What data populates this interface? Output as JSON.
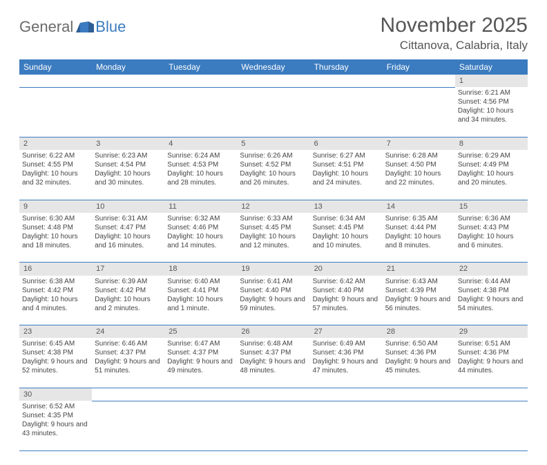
{
  "brand": {
    "part1": "General",
    "part2": "Blue"
  },
  "title": "November 2025",
  "location": "Cittanova, Calabria, Italy",
  "colors": {
    "header_bg": "#3b7bbf",
    "header_text": "#ffffff",
    "daynum_bg": "#e6e6e6",
    "row_border": "#3b7bbf",
    "page_bg": "#ffffff",
    "body_text": "#444444",
    "title_text": "#555555",
    "logo_gray": "#6a6a6a",
    "logo_blue": "#3b7bbf"
  },
  "weekdays": [
    "Sunday",
    "Monday",
    "Tuesday",
    "Wednesday",
    "Thursday",
    "Friday",
    "Saturday"
  ],
  "weeks": [
    [
      null,
      null,
      null,
      null,
      null,
      null,
      {
        "n": "1",
        "sunrise": "Sunrise: 6:21 AM",
        "sunset": "Sunset: 4:56 PM",
        "daylight": "Daylight: 10 hours and 34 minutes."
      }
    ],
    [
      {
        "n": "2",
        "sunrise": "Sunrise: 6:22 AM",
        "sunset": "Sunset: 4:55 PM",
        "daylight": "Daylight: 10 hours and 32 minutes."
      },
      {
        "n": "3",
        "sunrise": "Sunrise: 6:23 AM",
        "sunset": "Sunset: 4:54 PM",
        "daylight": "Daylight: 10 hours and 30 minutes."
      },
      {
        "n": "4",
        "sunrise": "Sunrise: 6:24 AM",
        "sunset": "Sunset: 4:53 PM",
        "daylight": "Daylight: 10 hours and 28 minutes."
      },
      {
        "n": "5",
        "sunrise": "Sunrise: 6:26 AM",
        "sunset": "Sunset: 4:52 PM",
        "daylight": "Daylight: 10 hours and 26 minutes."
      },
      {
        "n": "6",
        "sunrise": "Sunrise: 6:27 AM",
        "sunset": "Sunset: 4:51 PM",
        "daylight": "Daylight: 10 hours and 24 minutes."
      },
      {
        "n": "7",
        "sunrise": "Sunrise: 6:28 AM",
        "sunset": "Sunset: 4:50 PM",
        "daylight": "Daylight: 10 hours and 22 minutes."
      },
      {
        "n": "8",
        "sunrise": "Sunrise: 6:29 AM",
        "sunset": "Sunset: 4:49 PM",
        "daylight": "Daylight: 10 hours and 20 minutes."
      }
    ],
    [
      {
        "n": "9",
        "sunrise": "Sunrise: 6:30 AM",
        "sunset": "Sunset: 4:48 PM",
        "daylight": "Daylight: 10 hours and 18 minutes."
      },
      {
        "n": "10",
        "sunrise": "Sunrise: 6:31 AM",
        "sunset": "Sunset: 4:47 PM",
        "daylight": "Daylight: 10 hours and 16 minutes."
      },
      {
        "n": "11",
        "sunrise": "Sunrise: 6:32 AM",
        "sunset": "Sunset: 4:46 PM",
        "daylight": "Daylight: 10 hours and 14 minutes."
      },
      {
        "n": "12",
        "sunrise": "Sunrise: 6:33 AM",
        "sunset": "Sunset: 4:45 PM",
        "daylight": "Daylight: 10 hours and 12 minutes."
      },
      {
        "n": "13",
        "sunrise": "Sunrise: 6:34 AM",
        "sunset": "Sunset: 4:45 PM",
        "daylight": "Daylight: 10 hours and 10 minutes."
      },
      {
        "n": "14",
        "sunrise": "Sunrise: 6:35 AM",
        "sunset": "Sunset: 4:44 PM",
        "daylight": "Daylight: 10 hours and 8 minutes."
      },
      {
        "n": "15",
        "sunrise": "Sunrise: 6:36 AM",
        "sunset": "Sunset: 4:43 PM",
        "daylight": "Daylight: 10 hours and 6 minutes."
      }
    ],
    [
      {
        "n": "16",
        "sunrise": "Sunrise: 6:38 AM",
        "sunset": "Sunset: 4:42 PM",
        "daylight": "Daylight: 10 hours and 4 minutes."
      },
      {
        "n": "17",
        "sunrise": "Sunrise: 6:39 AM",
        "sunset": "Sunset: 4:42 PM",
        "daylight": "Daylight: 10 hours and 2 minutes."
      },
      {
        "n": "18",
        "sunrise": "Sunrise: 6:40 AM",
        "sunset": "Sunset: 4:41 PM",
        "daylight": "Daylight: 10 hours and 1 minute."
      },
      {
        "n": "19",
        "sunrise": "Sunrise: 6:41 AM",
        "sunset": "Sunset: 4:40 PM",
        "daylight": "Daylight: 9 hours and 59 minutes."
      },
      {
        "n": "20",
        "sunrise": "Sunrise: 6:42 AM",
        "sunset": "Sunset: 4:40 PM",
        "daylight": "Daylight: 9 hours and 57 minutes."
      },
      {
        "n": "21",
        "sunrise": "Sunrise: 6:43 AM",
        "sunset": "Sunset: 4:39 PM",
        "daylight": "Daylight: 9 hours and 56 minutes."
      },
      {
        "n": "22",
        "sunrise": "Sunrise: 6:44 AM",
        "sunset": "Sunset: 4:38 PM",
        "daylight": "Daylight: 9 hours and 54 minutes."
      }
    ],
    [
      {
        "n": "23",
        "sunrise": "Sunrise: 6:45 AM",
        "sunset": "Sunset: 4:38 PM",
        "daylight": "Daylight: 9 hours and 52 minutes."
      },
      {
        "n": "24",
        "sunrise": "Sunrise: 6:46 AM",
        "sunset": "Sunset: 4:37 PM",
        "daylight": "Daylight: 9 hours and 51 minutes."
      },
      {
        "n": "25",
        "sunrise": "Sunrise: 6:47 AM",
        "sunset": "Sunset: 4:37 PM",
        "daylight": "Daylight: 9 hours and 49 minutes."
      },
      {
        "n": "26",
        "sunrise": "Sunrise: 6:48 AM",
        "sunset": "Sunset: 4:37 PM",
        "daylight": "Daylight: 9 hours and 48 minutes."
      },
      {
        "n": "27",
        "sunrise": "Sunrise: 6:49 AM",
        "sunset": "Sunset: 4:36 PM",
        "daylight": "Daylight: 9 hours and 47 minutes."
      },
      {
        "n": "28",
        "sunrise": "Sunrise: 6:50 AM",
        "sunset": "Sunset: 4:36 PM",
        "daylight": "Daylight: 9 hours and 45 minutes."
      },
      {
        "n": "29",
        "sunrise": "Sunrise: 6:51 AM",
        "sunset": "Sunset: 4:36 PM",
        "daylight": "Daylight: 9 hours and 44 minutes."
      }
    ],
    [
      {
        "n": "30",
        "sunrise": "Sunrise: 6:52 AM",
        "sunset": "Sunset: 4:35 PM",
        "daylight": "Daylight: 9 hours and 43 minutes."
      },
      null,
      null,
      null,
      null,
      null,
      null
    ]
  ]
}
